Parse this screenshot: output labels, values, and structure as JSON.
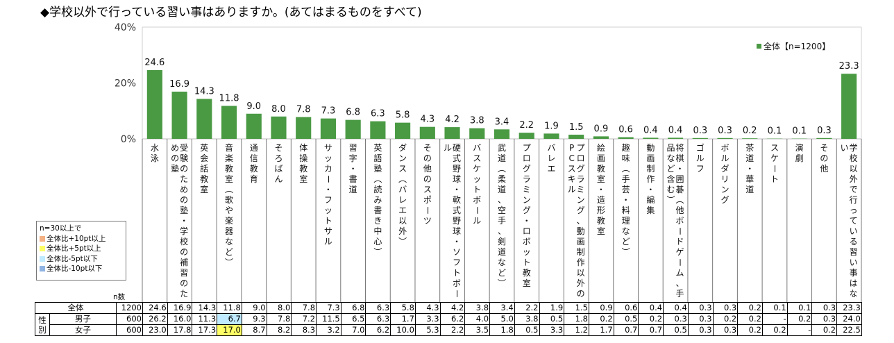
{
  "title": "◆学校以外で行っている習い事はありますか。(あてはまるものをすべて)",
  "chart_data": {
    "type": "bar",
    "categories": [
      "水泳",
      "受験のための塾・学校の補習のための塾",
      "英会話教室",
      "音楽教室(歌や楽器など)",
      "通信教育",
      "そろばん",
      "体操教室",
      "サッカー・フットサル",
      "習字・書道",
      "英語塾(読み書き中心)",
      "ダンス(バレエ以外)",
      "その他のスポーツ",
      "硬式野球・軟式野球・ソフトボール",
      "バスケットボール",
      "武道(柔道、空手、剣道など)",
      "プログラミング・ロボット教室",
      "バレエ",
      "プログラミング、動画制作以外のPCスキル",
      "絵画教室・造形教室",
      "趣味(手芸・料理など)",
      "動画制作・編集",
      "将棋・囲碁(他ボードゲーム、手品など含む)",
      "ゴルフ",
      "ボルダリング",
      "茶道・華道",
      "スケート",
      "演劇",
      "その他",
      "学校以外で行っている習い事はない"
    ],
    "values": [
      24.6,
      16.9,
      14.3,
      11.8,
      9.0,
      8.0,
      7.8,
      7.3,
      6.8,
      6.3,
      5.8,
      4.3,
      4.2,
      3.8,
      3.4,
      2.2,
      1.9,
      1.5,
      0.9,
      0.6,
      0.4,
      0.4,
      0.3,
      0.3,
      0.2,
      0.1,
      0.1,
      0.3,
      23.3
    ],
    "value_labels": [
      "24.6",
      "16.9",
      "14.3",
      "11.8",
      "9.0",
      "8.0",
      "7.8",
      "7.3",
      "6.8",
      "6.3",
      "5.8",
      "4.3",
      "4.2",
      "3.8",
      "3.4",
      "2.2",
      "1.9",
      "1.5",
      "0.9",
      "0.6",
      "0.4",
      "0.4",
      "0.3",
      "0.3",
      "0.2",
      "0.1",
      "0.1",
      "0.3",
      "23.3"
    ],
    "ylim": [
      0,
      40
    ],
    "yticks": [
      "0%",
      "20%",
      "40%"
    ],
    "series_name": "全体【n=1200】",
    "bar_color": "#4a9a44",
    "legend_placement": "top-right",
    "grid": false
  },
  "legend_note": {
    "title": "n=30以上で",
    "items": [
      {
        "label": "全体比+10pt以上",
        "color": "#f4b183"
      },
      {
        "label": "全体比+5pt以上",
        "color": "#ffff66"
      },
      {
        "label": "全体比-5pt以下",
        "color": "#bfeaff"
      },
      {
        "label": "全体比-10pt以下",
        "color": "#8fb4e3"
      }
    ]
  },
  "table": {
    "n_label": "n数",
    "group_label": "性別",
    "rows": [
      {
        "label": "全体",
        "n": "1200",
        "values": [
          "24.6",
          "16.9",
          "14.3",
          "11.8",
          "9.0",
          "8.0",
          "7.8",
          "7.3",
          "6.8",
          "6.3",
          "5.8",
          "4.3",
          "4.2",
          "3.8",
          "3.4",
          "2.2",
          "1.9",
          "1.5",
          "0.9",
          "0.6",
          "0.4",
          "0.4",
          "0.3",
          "0.3",
          "0.2",
          "0.1",
          "0.1",
          "0.3",
          "23.3"
        ],
        "hi": [],
        "lo": []
      },
      {
        "label": "男子",
        "n": "600",
        "values": [
          "26.2",
          "16.0",
          "11.3",
          "6.7",
          "9.3",
          "7.8",
          "7.2",
          "11.5",
          "6.5",
          "6.3",
          "1.7",
          "3.3",
          "6.2",
          "4.0",
          "5.0",
          "3.8",
          "0.5",
          "1.8",
          "0.2",
          "0.5",
          "0.2",
          "0.3",
          "0.3",
          "0.2",
          "0.2",
          "-",
          "0.2",
          "0.3",
          "24.0"
        ],
        "hi": [],
        "lo": [
          3
        ]
      },
      {
        "label": "女子",
        "n": "600",
        "values": [
          "23.0",
          "17.8",
          "17.3",
          "17.0",
          "8.7",
          "8.2",
          "8.3",
          "3.2",
          "7.0",
          "6.2",
          "10.0",
          "5.3",
          "2.2",
          "3.5",
          "1.8",
          "0.5",
          "3.3",
          "1.2",
          "1.7",
          "0.7",
          "0.7",
          "0.5",
          "0.3",
          "0.3",
          "0.2",
          "0.2",
          "-",
          "0.2",
          "22.5"
        ],
        "hi": [
          3
        ],
        "lo": []
      }
    ]
  }
}
